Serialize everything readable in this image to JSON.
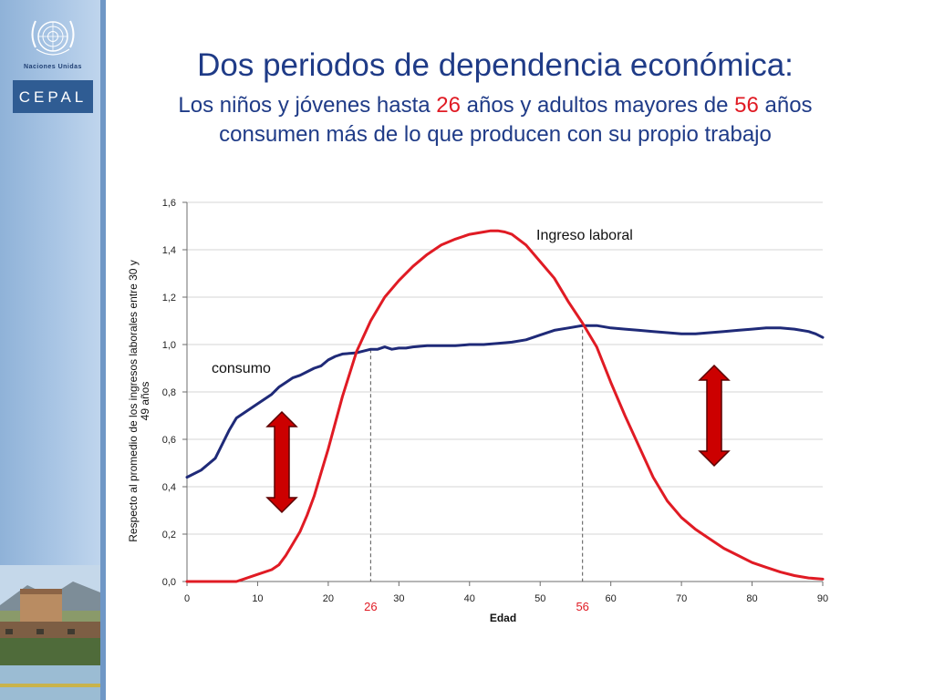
{
  "header": {
    "org_name": "Naciones Unidas",
    "logo_text": "CEPAL",
    "title": "Dos periodos de dependencia económica:",
    "subtitle_l1_a": "Los niños y jóvenes hasta ",
    "subtitle_l1_age1": "26",
    "subtitle_l1_b": " años y adultos mayores de ",
    "subtitle_l1_age2": "56",
    "subtitle_l1_c": " años",
    "subtitle_l2": "consumen más de lo que producen con su propio trabajo"
  },
  "chart_data": {
    "type": "line",
    "xlabel": "Edad",
    "ylabel": "Respecto al promedio de los ingresos laborales entre 30 y 49 años",
    "xlim": [
      0,
      90
    ],
    "ylim": [
      0,
      1.6
    ],
    "x_ticks": [
      "0",
      "10",
      "20",
      "30",
      "40",
      "50",
      "60",
      "70",
      "80",
      "90"
    ],
    "y_ticks": [
      "0,0",
      "0,2",
      "0,4",
      "0,6",
      "0,8",
      "1,0",
      "1,2",
      "1,4",
      "1,6"
    ],
    "grid": true,
    "series": [
      {
        "name": "consumo",
        "color": "#1f2a78",
        "x": [
          0,
          2,
          4,
          6,
          7,
          8,
          10,
          12,
          13,
          14,
          15,
          16,
          17,
          18,
          19,
          20,
          21,
          22,
          24,
          26,
          27,
          28,
          29,
          30,
          31,
          32,
          34,
          36,
          38,
          40,
          42,
          44,
          46,
          48,
          50,
          52,
          54,
          56,
          58,
          60,
          62,
          64,
          66,
          68,
          70,
          72,
          74,
          76,
          78,
          80,
          82,
          84,
          86,
          88,
          89,
          90
        ],
        "y": [
          0.44,
          0.47,
          0.52,
          0.64,
          0.69,
          0.71,
          0.75,
          0.79,
          0.82,
          0.84,
          0.86,
          0.87,
          0.885,
          0.9,
          0.91,
          0.935,
          0.95,
          0.96,
          0.965,
          0.98,
          0.98,
          0.99,
          0.98,
          0.985,
          0.985,
          0.99,
          0.995,
          0.995,
          0.995,
          1.0,
          1.0,
          1.005,
          1.01,
          1.02,
          1.04,
          1.06,
          1.07,
          1.08,
          1.08,
          1.07,
          1.065,
          1.06,
          1.055,
          1.05,
          1.045,
          1.045,
          1.05,
          1.055,
          1.06,
          1.065,
          1.07,
          1.07,
          1.065,
          1.055,
          1.045,
          1.03
        ]
      },
      {
        "name": "Ingreso laboral",
        "color": "#e01b24",
        "x": [
          0,
          4,
          7,
          8,
          10,
          12,
          13,
          14,
          15,
          16,
          17,
          18,
          19,
          20,
          22,
          24,
          26,
          28,
          30,
          32,
          34,
          36,
          38,
          40,
          42,
          43,
          44,
          45,
          46,
          48,
          50,
          52,
          54,
          56,
          58,
          60,
          62,
          64,
          66,
          68,
          70,
          72,
          74,
          76,
          78,
          80,
          82,
          84,
          86,
          88,
          90
        ],
        "y": [
          0.0,
          0.0,
          0.0,
          0.01,
          0.03,
          0.05,
          0.07,
          0.11,
          0.16,
          0.21,
          0.28,
          0.36,
          0.46,
          0.56,
          0.78,
          0.97,
          1.1,
          1.2,
          1.27,
          1.33,
          1.38,
          1.42,
          1.445,
          1.465,
          1.475,
          1.48,
          1.48,
          1.475,
          1.465,
          1.42,
          1.35,
          1.28,
          1.18,
          1.09,
          0.99,
          0.84,
          0.7,
          0.57,
          0.44,
          0.34,
          0.27,
          0.22,
          0.18,
          0.14,
          0.11,
          0.08,
          0.06,
          0.04,
          0.025,
          0.015,
          0.01
        ]
      }
    ],
    "reference_lines": [
      {
        "x": 26,
        "y": 0.98,
        "label": "26"
      },
      {
        "x": 56,
        "y": 1.09,
        "label": "56"
      }
    ],
    "colors": {
      "axis": "#6d6d6d",
      "grid": "#d6d6d6",
      "arrow_fill": "#cc0000",
      "arrow_stroke": "#5a0000",
      "marker": "#e01b24"
    }
  }
}
